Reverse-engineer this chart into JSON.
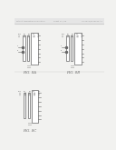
{
  "bg_color": "#f2f2f0",
  "line_color": "#666666",
  "header_text_color": "#999999",
  "fig8a": {
    "ox": 4,
    "oy": 90,
    "label": "FIG. 8A"
  },
  "fig8b": {
    "ox": 66,
    "oy": 90,
    "label": "FIG. 8B"
  },
  "fig8c": {
    "ox": 5,
    "oy": 8,
    "label": "FIG. 8C"
  }
}
